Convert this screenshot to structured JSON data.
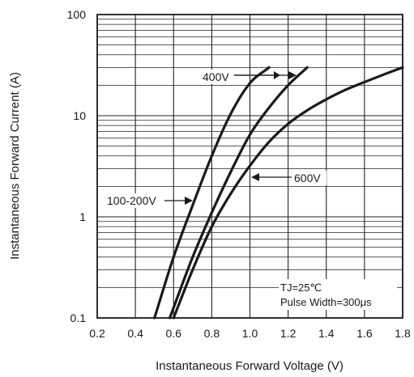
{
  "chart_data": {
    "type": "line",
    "xlabel": "Instantaneous Forward Voltage (V)",
    "ylabel": "Instantaneous Forward Current (A)",
    "xlim": [
      0.2,
      1.8
    ],
    "ylim": [
      0.1,
      100
    ],
    "yscale": "log",
    "x_ticks": [
      "0.2",
      "0.4",
      "0.6",
      "0.8",
      "1.0",
      "1.2",
      "1.4",
      "1.6",
      "1.8"
    ],
    "y_ticks": [
      "0.1",
      "1",
      "10",
      "100"
    ],
    "grid": true,
    "series": [
      {
        "name": "100-200V",
        "x": [
          0.5,
          0.6,
          0.7,
          0.8,
          0.9,
          1.0,
          1.1
        ],
        "y": [
          0.1,
          0.4,
          1.3,
          4.0,
          10.5,
          21,
          30
        ]
      },
      {
        "name": "400V",
        "x": [
          0.58,
          0.7,
          0.8,
          0.9,
          1.0,
          1.1,
          1.2,
          1.3
        ],
        "y": [
          0.1,
          0.4,
          1.1,
          2.8,
          6.5,
          12,
          20,
          30
        ]
      },
      {
        "name": "600V",
        "x": [
          0.6,
          0.7,
          0.8,
          0.9,
          1.0,
          1.1,
          1.2,
          1.3,
          1.4,
          1.5,
          1.6,
          1.7,
          1.8
        ],
        "y": [
          0.1,
          0.3,
          0.8,
          1.7,
          3.2,
          5.5,
          8.3,
          11.3,
          14.5,
          18,
          21.5,
          25.5,
          30
        ]
      }
    ],
    "annotations": {
      "label_100_200v": "100-200V",
      "label_400v": "400V",
      "label_600v": "600V",
      "condition_tj": "TJ=25℃",
      "condition_pulse": "Pulse Width=300μs"
    }
  }
}
